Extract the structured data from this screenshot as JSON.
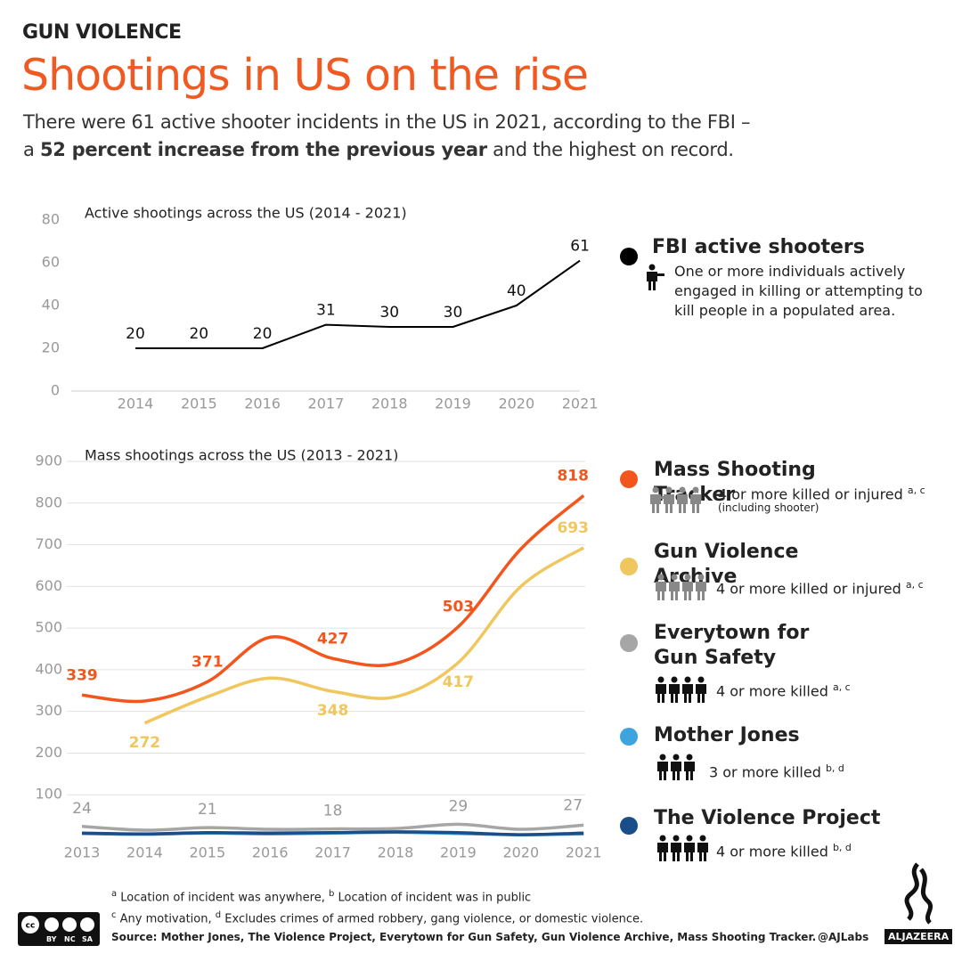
{
  "header": {
    "kicker": "GUN VIOLENCE",
    "title": "Shootings in US on the rise",
    "subtitle": [
      "There were 61 active shooter incidents in the US in 2021, according to the FBI –",
      "a ",
      "52 percent increase from the previous year",
      " and the highest on record."
    ]
  },
  "chart_data": [
    {
      "type": "line",
      "title": "Active shootings across the US (2014 - 2021)",
      "categories": [
        "2014",
        "2015",
        "2016",
        "2017",
        "2018",
        "2019",
        "2020",
        "2021"
      ],
      "series": [
        {
          "name": "FBI active shooters",
          "color": "#000000",
          "values": [
            20,
            20,
            20,
            31,
            30,
            30,
            40,
            61
          ],
          "description": "One or more individuals actively engaged in killing or attempting to kill people in a populated area."
        }
      ],
      "ylim": [
        0,
        80
      ],
      "yticks": [
        0,
        20,
        40,
        60,
        80
      ],
      "grid": false,
      "smooth": false
    },
    {
      "type": "line",
      "title": "Mass shootings across the US (2013 - 2021)",
      "categories": [
        "2013",
        "2014",
        "2015",
        "2016",
        "2017",
        "2018",
        "2019",
        "2020",
        "2021"
      ],
      "series": [
        {
          "name": "Mass Shooting Tracker",
          "color": "#f2561d",
          "values": [
            339,
            325,
            371,
            478,
            427,
            415,
            503,
            690,
            818
          ],
          "value_labels": [
            "339",
            null,
            "371",
            null,
            "427",
            null,
            "503",
            null,
            "818"
          ],
          "description": "4 or more killed or injured",
          "refs": "a, c",
          "note": "(including shooter)"
        },
        {
          "name": "Gun Violence Archive",
          "color": "#f0c75e",
          "values": [
            null,
            272,
            335,
            380,
            348,
            335,
            417,
            600,
            693
          ],
          "value_labels": [
            null,
            "272",
            null,
            null,
            "348",
            null,
            "417",
            null,
            "693"
          ],
          "description": "4 or more killed or injured",
          "refs": "a, c"
        },
        {
          "name": "Everytown for Gun Safety",
          "color": "#a6a6a6",
          "values": [
            24,
            15,
            21,
            17,
            18,
            19,
            29,
            17,
            27
          ],
          "value_labels": [
            "24",
            null,
            "21",
            null,
            "18",
            null,
            "29",
            null,
            "27"
          ],
          "description": "4 or more killed",
          "refs": "a, c"
        },
        {
          "name": "Mother Jones",
          "color": "#3ea4e0",
          "values": [
            7,
            5,
            8,
            6,
            8,
            10,
            7,
            4,
            6
          ],
          "description": "3 or more killed",
          "refs": "b, d"
        },
        {
          "name": "The Violence Project",
          "color": "#1a4e8a",
          "values": [
            8,
            6,
            9,
            8,
            9,
            11,
            9,
            4,
            8
          ],
          "description": "4 or more killed",
          "refs": "b, d"
        }
      ],
      "ylim": [
        0,
        900
      ],
      "yticks": [
        100,
        200,
        300,
        400,
        500,
        600,
        700,
        800,
        900
      ],
      "grid": true,
      "smooth": true
    }
  ],
  "footnotes": [
    {
      "mark": "a",
      "text": "Location of incident was anywhere,"
    },
    {
      "mark": "b",
      "text": "Location of incident was in public"
    },
    {
      "mark": "c",
      "text": "Any motivation,"
    },
    {
      "mark": "d",
      "text": "Excludes crimes of armed robbery, gang violence, or domestic violence."
    }
  ],
  "source": "Source: Mother Jones, The Violence Project, Everytown for Gun Safety, Gun Violence Archive, Mass Shooting Tracker.",
  "credit": "@AJLabs",
  "brand": "ALJAZEERA",
  "license": [
    "BY",
    "NC",
    "SA"
  ]
}
